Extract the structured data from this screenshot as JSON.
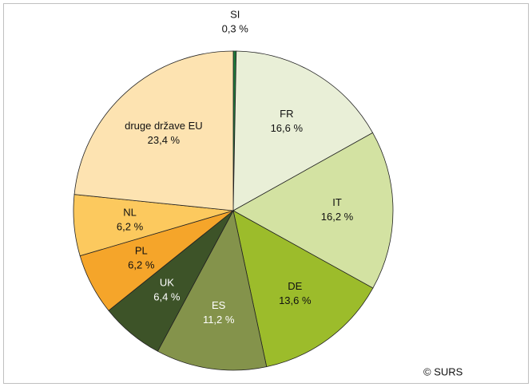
{
  "chart_data": {
    "type": "pie",
    "categories": [
      "SI",
      "FR",
      "IT",
      "DE",
      "ES",
      "UK",
      "PL",
      "NL",
      "druge države EU"
    ],
    "values": [
      0.3,
      16.6,
      16.2,
      13.6,
      11.2,
      6.4,
      6.2,
      6.2,
      23.4
    ],
    "value_labels": [
      "0,3 %",
      "16,6 %",
      "16,2 %",
      "13,6 %",
      "11,2 %",
      "6,4 %",
      "6,2 %",
      "6,2 %",
      "23,4 %"
    ],
    "colors": [
      "#1f7a3a",
      "#e9efd7",
      "#d3e2a2",
      "#9cbc2b",
      "#84934b",
      "#3d5328",
      "#f5a52a",
      "#fcc95e",
      "#fde3b1"
    ],
    "source": "© SURS"
  }
}
